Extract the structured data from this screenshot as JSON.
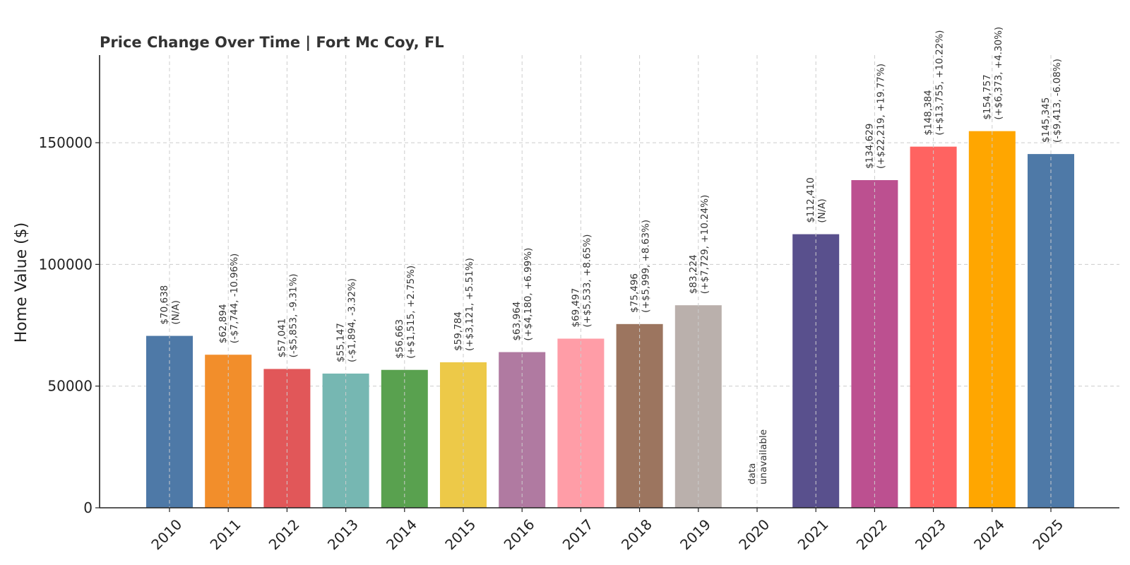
{
  "chart_data": {
    "type": "bar",
    "title": "Price Change Over Time | Fort Mc Coy, FL",
    "xlabel": "",
    "ylabel": "Home Value ($)",
    "ylim": [
      0,
      186000
    ],
    "yticks": [
      0,
      50000,
      100000,
      150000
    ],
    "ytick_labels": [
      "0",
      "50000",
      "100000",
      "150000"
    ],
    "grid": true,
    "categories": [
      "2010",
      "2011",
      "2012",
      "2013",
      "2014",
      "2015",
      "2016",
      "2017",
      "2018",
      "2019",
      "2020",
      "2021",
      "2022",
      "2023",
      "2024",
      "2025"
    ],
    "values": [
      70638,
      62894,
      57041,
      55147,
      56663,
      59784,
      63964,
      69497,
      75496,
      83224,
      null,
      112410,
      134629,
      148384,
      154757,
      145345
    ],
    "colors": [
      "#4e79a7",
      "#f28e2b",
      "#e15759",
      "#76b7b2",
      "#59a14f",
      "#edc948",
      "#b07aa1",
      "#ff9da7",
      "#9c755f",
      "#bab0ac",
      "#ffffff",
      "#59508d",
      "#bc5090",
      "#ff6361",
      "#ffa600",
      "#4e79a7"
    ],
    "labels": [
      [
        "$70,638",
        "(N/A)"
      ],
      [
        "$62,894",
        "(-$7,744, -10.96%)"
      ],
      [
        "$57,041",
        "(-$5,853, -9.31%)"
      ],
      [
        "$55,147",
        "(-$1,894, -3.32%)"
      ],
      [
        "$56,663",
        "(+$1,515, +2.75%)"
      ],
      [
        "$59,784",
        "(+$3,121, +5.51%)"
      ],
      [
        "$63,964",
        "(+$4,180, +6.99%)"
      ],
      [
        "$69,497",
        "(+$5,533, +8.65%)"
      ],
      [
        "$75,496",
        "(+$5,999, +8.63%)"
      ],
      [
        "$83,224",
        "(+$7,729, +10.24%)"
      ],
      [
        "data",
        "unavailable"
      ],
      [
        "$112,410",
        "(N/A)"
      ],
      [
        "$134,629",
        "(+$22,219, +19.77%)"
      ],
      [
        "$148,384",
        "(+$13,755, +10.22%)"
      ],
      [
        "$154,757",
        "(+$6,373, +4.30%)"
      ],
      [
        "$145,345",
        "(-$9,413, -6.08%)"
      ]
    ]
  }
}
